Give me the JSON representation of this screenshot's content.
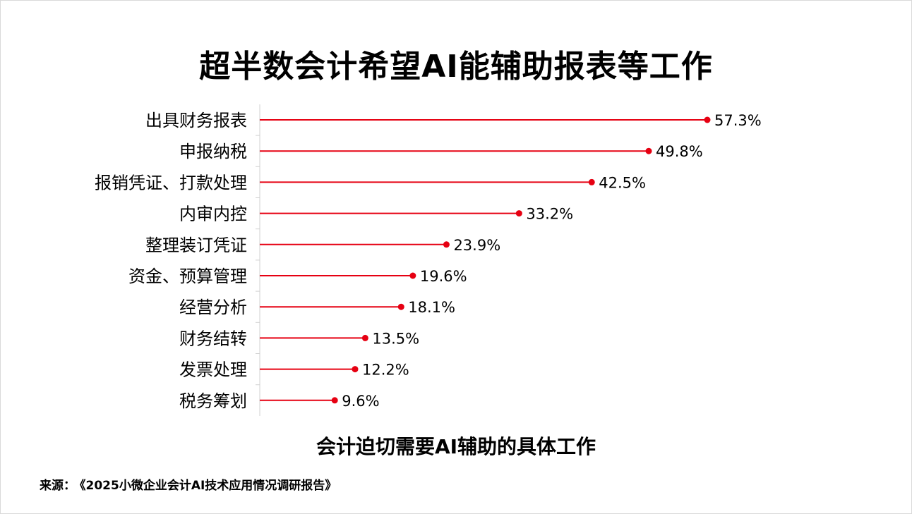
{
  "title": "超半数会计希望AI能辅助报表等工作",
  "chart_data": {
    "type": "bar",
    "title": "超半数会计希望AI能辅助报表等工作",
    "subtitle": "会计迫切需要AI辅助的具体工作",
    "categories": [
      "出具财务报表",
      "申报纳税",
      "报销凭证、打款处理",
      "内审内控",
      "整理装订凭证",
      "资金、预算管理",
      "经营分析",
      "财务结转",
      "发票处理",
      "税务筹划"
    ],
    "values": [
      57.3,
      49.8,
      42.5,
      33.2,
      23.9,
      19.6,
      18.1,
      13.5,
      12.2,
      9.6
    ],
    "value_labels": [
      "57.3%",
      "49.8%",
      "42.5%",
      "33.2%",
      "23.9%",
      "19.6%",
      "18.1%",
      "13.5%",
      "12.2%",
      "9.6%"
    ],
    "unit": "%",
    "orientation": "horizontal",
    "style": "lollipop",
    "color": "#e60012",
    "xlim": [
      0,
      60
    ],
    "grid": false
  },
  "footer": {
    "source_label": "来源：",
    "source_text": "《2025小微企业会计AI技术应用情况调研报告》"
  }
}
